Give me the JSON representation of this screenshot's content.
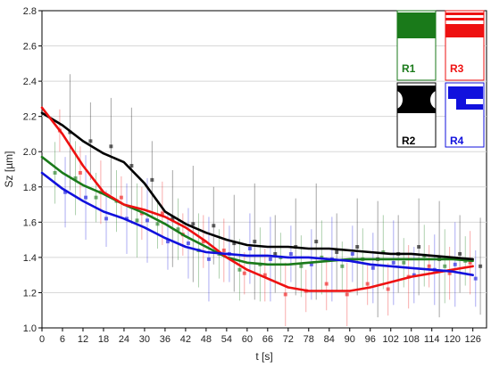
{
  "chart_data": {
    "type": "line",
    "xlabel": "t [s]",
    "ylabel": "Sz [µm]",
    "xlim": [
      0,
      130
    ],
    "ylim": [
      1.0,
      2.8
    ],
    "x_ticks": [
      0,
      6,
      12,
      18,
      24,
      30,
      36,
      42,
      48,
      54,
      60,
      66,
      72,
      78,
      84,
      90,
      96,
      102,
      108,
      114,
      120,
      126
    ],
    "y_ticks": [
      1.0,
      1.2,
      1.4,
      1.6,
      1.8,
      2.0,
      2.2,
      2.4,
      2.6,
      2.8
    ],
    "x_tick_labels": [
      "0",
      "6",
      "12",
      "18",
      "24",
      "30",
      "36",
      "42",
      "48",
      "54",
      "60",
      "66",
      "72",
      "78",
      "84",
      "90",
      "96",
      "102",
      "108",
      "114",
      "120",
      "126"
    ],
    "y_tick_labels": [
      "1.0",
      "1.2",
      "1.4",
      "1.6",
      "1.8",
      "2.0",
      "2.2",
      "2.4",
      "2.6",
      "2.8"
    ],
    "grid": true,
    "legend_placement": "top-right",
    "series": [
      {
        "name": "R1",
        "color": "#1a7a1a",
        "x": [
          0,
          6,
          12,
          18,
          24,
          30,
          36,
          42,
          48,
          54,
          60,
          66,
          72,
          78,
          84,
          90,
          96,
          102,
          108,
          114,
          120,
          126
        ],
        "y": [
          1.97,
          1.88,
          1.81,
          1.76,
          1.7,
          1.65,
          1.59,
          1.52,
          1.46,
          1.4,
          1.37,
          1.36,
          1.36,
          1.37,
          1.38,
          1.39,
          1.39,
          1.39,
          1.39,
          1.39,
          1.39,
          1.38
        ]
      },
      {
        "name": "R2",
        "color": "#000000",
        "x": [
          0,
          6,
          12,
          18,
          24,
          30,
          36,
          42,
          48,
          54,
          60,
          66,
          72,
          78,
          84,
          90,
          96,
          102,
          108,
          114,
          120,
          126
        ],
        "y": [
          2.22,
          2.15,
          2.06,
          1.99,
          1.94,
          1.82,
          1.66,
          1.59,
          1.54,
          1.5,
          1.47,
          1.46,
          1.46,
          1.45,
          1.45,
          1.44,
          1.43,
          1.42,
          1.42,
          1.41,
          1.4,
          1.39
        ]
      },
      {
        "name": "R3",
        "color": "#ee1111",
        "x": [
          0,
          6,
          12,
          18,
          24,
          30,
          36,
          42,
          48,
          54,
          60,
          66,
          72,
          78,
          84,
          90,
          96,
          102,
          108,
          114,
          120,
          126
        ],
        "y": [
          2.25,
          2.1,
          1.92,
          1.77,
          1.7,
          1.67,
          1.63,
          1.57,
          1.49,
          1.4,
          1.33,
          1.28,
          1.23,
          1.21,
          1.21,
          1.21,
          1.23,
          1.26,
          1.29,
          1.31,
          1.33,
          1.35
        ]
      },
      {
        "name": "R4",
        "color": "#1111dd",
        "x": [
          0,
          6,
          12,
          18,
          24,
          30,
          36,
          42,
          48,
          54,
          60,
          66,
          72,
          78,
          84,
          90,
          96,
          102,
          108,
          114,
          120,
          126
        ],
        "y": [
          1.88,
          1.79,
          1.72,
          1.66,
          1.62,
          1.57,
          1.51,
          1.46,
          1.43,
          1.42,
          1.41,
          1.41,
          1.4,
          1.4,
          1.39,
          1.38,
          1.36,
          1.35,
          1.34,
          1.33,
          1.32,
          1.3
        ]
      }
    ],
    "legend": [
      {
        "label": "R1",
        "color": "#1a7a1a",
        "icon": "solid-block-icon"
      },
      {
        "label": "R3",
        "color": "#ee1111",
        "icon": "striped-block-icon"
      },
      {
        "label": "R2",
        "color": "#000000",
        "icon": "notched-block-icon"
      },
      {
        "label": "R4",
        "color": "#1111dd",
        "icon": "t-slot-icon"
      }
    ]
  }
}
